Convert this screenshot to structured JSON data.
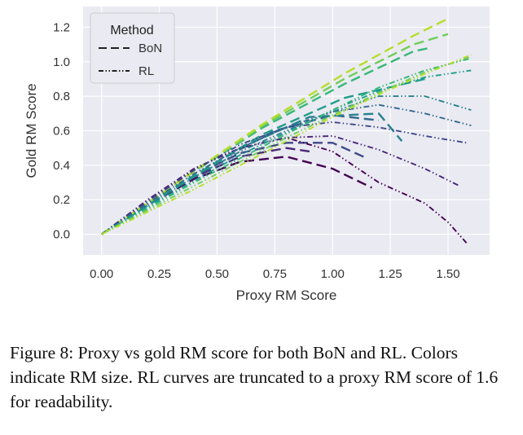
{
  "chart_data": {
    "type": "line",
    "xlabel": "Proxy RM Score",
    "ylabel": "Gold RM Score",
    "xlim": [
      -0.08,
      1.68
    ],
    "ylim": [
      -0.12,
      1.32
    ],
    "xticks": [
      0.0,
      0.25,
      0.5,
      0.75,
      1.0,
      1.25,
      1.5
    ],
    "xtick_labels": [
      "0.00",
      "0.25",
      "0.50",
      "0.75",
      "1.00",
      "1.25",
      "1.50"
    ],
    "yticks": [
      0.0,
      0.2,
      0.4,
      0.6,
      0.8,
      1.0,
      1.2
    ],
    "ytick_labels": [
      "0.0",
      "0.2",
      "0.4",
      "0.6",
      "0.8",
      "1.0",
      "1.2"
    ],
    "grid": true,
    "background": "#eaeaf2",
    "legend": {
      "title": "Method",
      "position": "top-left",
      "entries": [
        {
          "label": "BoN",
          "style": "dashed"
        },
        {
          "label": "RL",
          "style": "dashdotdot"
        }
      ]
    },
    "series": [
      {
        "method": "BoN",
        "color": "#440154",
        "x": [
          0.0,
          0.2,
          0.4,
          0.6,
          0.8,
          1.0,
          1.17
        ],
        "y": [
          0.0,
          0.17,
          0.32,
          0.42,
          0.45,
          0.38,
          0.27
        ]
      },
      {
        "method": "BoN",
        "color": "#482878",
        "x": [
          0.0,
          0.2,
          0.4,
          0.6,
          0.8,
          0.9
        ],
        "y": [
          0.0,
          0.17,
          0.33,
          0.45,
          0.5,
          0.48
        ]
      },
      {
        "method": "BoN",
        "color": "#3e4989",
        "x": [
          0.0,
          0.2,
          0.4,
          0.6,
          0.8,
          1.0,
          1.15
        ],
        "y": [
          0.0,
          0.18,
          0.34,
          0.47,
          0.53,
          0.53,
          0.44
        ]
      },
      {
        "method": "BoN",
        "color": "#31688e",
        "x": [
          0.0,
          0.25,
          0.5,
          0.75,
          1.0,
          1.2
        ],
        "y": [
          0.0,
          0.21,
          0.42,
          0.6,
          0.69,
          0.66
        ]
      },
      {
        "method": "BoN",
        "color": "#26828e",
        "x": [
          0.0,
          0.3,
          0.6,
          0.9,
          1.2,
          1.3
        ],
        "y": [
          0.0,
          0.25,
          0.5,
          0.68,
          0.7,
          0.54
        ]
      },
      {
        "method": "BoN",
        "color": "#1f9e89",
        "x": [
          0.0,
          0.35,
          0.7,
          1.05,
          1.4
        ],
        "y": [
          0.0,
          0.3,
          0.58,
          0.79,
          0.9
        ]
      },
      {
        "method": "BoN",
        "color": "#35b779",
        "x": [
          0.0,
          0.35,
          0.7,
          1.05,
          1.35,
          1.42
        ],
        "y": [
          0.0,
          0.32,
          0.62,
          0.87,
          1.06,
          1.08
        ]
      },
      {
        "method": "BoN",
        "color": "#6ece58",
        "x": [
          0.0,
          0.35,
          0.7,
          1.05,
          1.35,
          1.5
        ],
        "y": [
          0.0,
          0.32,
          0.63,
          0.9,
          1.1,
          1.16
        ]
      },
      {
        "method": "BoN",
        "color": "#b5de2b",
        "x": [
          0.0,
          0.35,
          0.7,
          1.05,
          1.35,
          1.5
        ],
        "y": [
          0.0,
          0.32,
          0.64,
          0.93,
          1.15,
          1.25
        ]
      },
      {
        "method": "RL",
        "color": "#440154",
        "x": [
          0.0,
          0.2,
          0.4,
          0.6,
          0.8,
          1.0,
          1.2,
          1.4,
          1.5,
          1.58
        ],
        "y": [
          0.0,
          0.2,
          0.38,
          0.5,
          0.56,
          0.48,
          0.3,
          0.18,
          0.07,
          -0.05
        ]
      },
      {
        "method": "RL",
        "color": "#482878",
        "x": [
          0.0,
          0.2,
          0.4,
          0.6,
          0.8,
          1.0,
          1.2,
          1.4,
          1.55
        ],
        "y": [
          0.0,
          0.2,
          0.38,
          0.5,
          0.56,
          0.57,
          0.49,
          0.38,
          0.28
        ]
      },
      {
        "method": "RL",
        "color": "#3e4989",
        "x": [
          0.0,
          0.2,
          0.4,
          0.6,
          0.8,
          1.0,
          1.2,
          1.4,
          1.58
        ],
        "y": [
          0.0,
          0.19,
          0.37,
          0.52,
          0.62,
          0.65,
          0.62,
          0.57,
          0.53
        ]
      },
      {
        "method": "RL",
        "color": "#31688e",
        "x": [
          0.0,
          0.2,
          0.4,
          0.6,
          0.8,
          1.0,
          1.2,
          1.4,
          1.6
        ],
        "y": [
          0.0,
          0.18,
          0.35,
          0.5,
          0.62,
          0.71,
          0.75,
          0.7,
          0.63
        ]
      },
      {
        "method": "RL",
        "color": "#26828e",
        "x": [
          0.0,
          0.2,
          0.4,
          0.6,
          0.8,
          1.0,
          1.2,
          1.4,
          1.6
        ],
        "y": [
          0.0,
          0.17,
          0.33,
          0.48,
          0.6,
          0.71,
          0.8,
          0.8,
          0.72
        ]
      },
      {
        "method": "RL",
        "color": "#1f9e89",
        "x": [
          0.0,
          0.2,
          0.4,
          0.6,
          0.8,
          1.0,
          1.2,
          1.4,
          1.6
        ],
        "y": [
          0.0,
          0.16,
          0.31,
          0.46,
          0.59,
          0.72,
          0.83,
          0.91,
          0.95
        ]
      },
      {
        "method": "RL",
        "color": "#35b779",
        "x": [
          0.0,
          0.2,
          0.4,
          0.6,
          0.8,
          1.0,
          1.2,
          1.4,
          1.6
        ],
        "y": [
          0.0,
          0.15,
          0.3,
          0.44,
          0.58,
          0.72,
          0.85,
          0.95,
          1.02
        ]
      },
      {
        "method": "RL",
        "color": "#6ece58",
        "x": [
          0.0,
          0.2,
          0.4,
          0.6,
          0.8,
          1.0,
          1.2,
          1.4,
          1.6
        ],
        "y": [
          0.0,
          0.14,
          0.28,
          0.42,
          0.56,
          0.69,
          0.82,
          0.94,
          1.03
        ]
      },
      {
        "method": "RL",
        "color": "#b5de2b",
        "x": [
          0.0,
          0.2,
          0.4,
          0.6,
          0.8,
          1.0,
          1.2,
          1.4,
          1.6
        ],
        "y": [
          0.0,
          0.13,
          0.26,
          0.4,
          0.54,
          0.68,
          0.81,
          0.93,
          1.04
        ]
      }
    ]
  },
  "caption": "Figure 8: Proxy vs gold RM score for both BoN and RL. Colors indicate RM size. RL curves are truncated to a proxy RM score of 1.6 for readability."
}
